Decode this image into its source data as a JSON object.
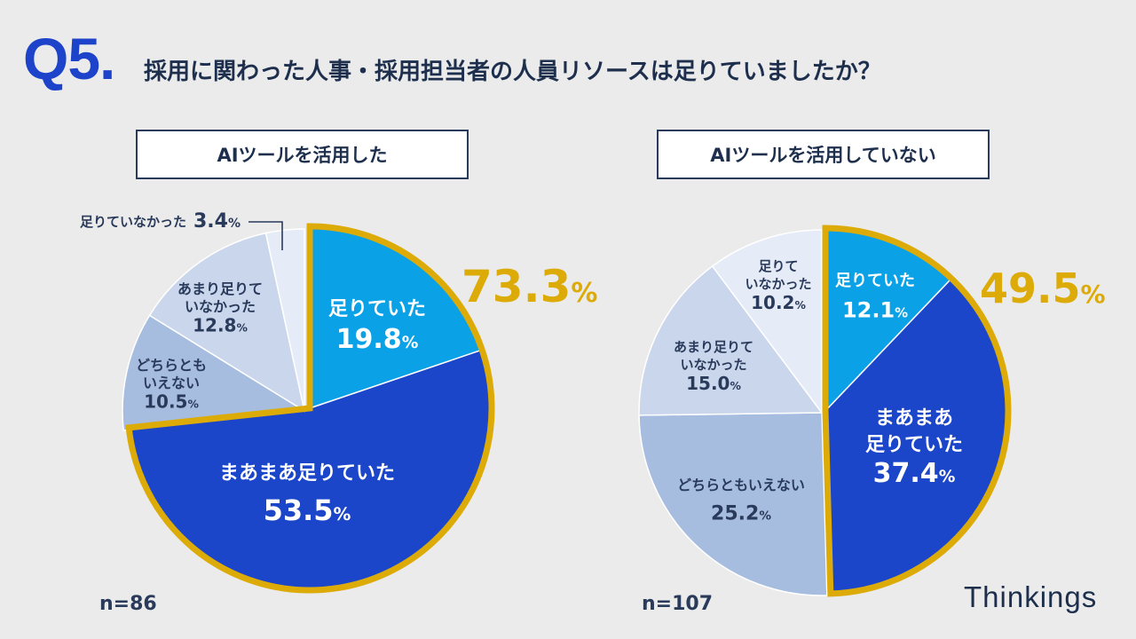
{
  "question": {
    "number": "Q5.",
    "text": "採用に関わった人事・採用担当者の人員リソースは足りていましたか？"
  },
  "brand": "Thinkings",
  "colors": {
    "blue_light": "#0aa1e6",
    "blue_dark": "#1b46c9",
    "gray_blue": "#a6bde0",
    "pale_blue": "#c9d6ec",
    "very_pale": "#e6ecf7",
    "gold": "#dcab08",
    "text_dark": "#2a3a5a"
  },
  "chart_data": [
    {
      "type": "pie",
      "title": "AIツールを活用した",
      "n": "n=86",
      "highlight_total": "73.3%",
      "slices": [
        {
          "name": "足りていた",
          "value": 19.8,
          "label": "19.8%"
        },
        {
          "name": "まあまあ足りていた",
          "value": 53.5,
          "label": "53.5%"
        },
        {
          "name": "どちらともいえない",
          "value": 10.5,
          "label": "10.5%"
        },
        {
          "name": "あまり足りていなかった",
          "value": 12.8,
          "label": "12.8%"
        },
        {
          "name": "足りていなかった",
          "value": 3.4,
          "label": "3.4%"
        }
      ]
    },
    {
      "type": "pie",
      "title": "AIツールを活用していない",
      "n": "n=107",
      "highlight_total": "49.5%",
      "slices": [
        {
          "name": "足りていた",
          "value": 12.1,
          "label": "12.1%"
        },
        {
          "name": "まあまあ足りていた",
          "value": 37.4,
          "label": "37.4%"
        },
        {
          "name": "どちらともいえない",
          "value": 25.2,
          "label": "25.2%"
        },
        {
          "name": "あまり足りていなかった",
          "value": 15.0,
          "label": "15.0%"
        },
        {
          "name": "足りていなかった",
          "value": 10.2,
          "label": "10.2%"
        }
      ]
    }
  ]
}
